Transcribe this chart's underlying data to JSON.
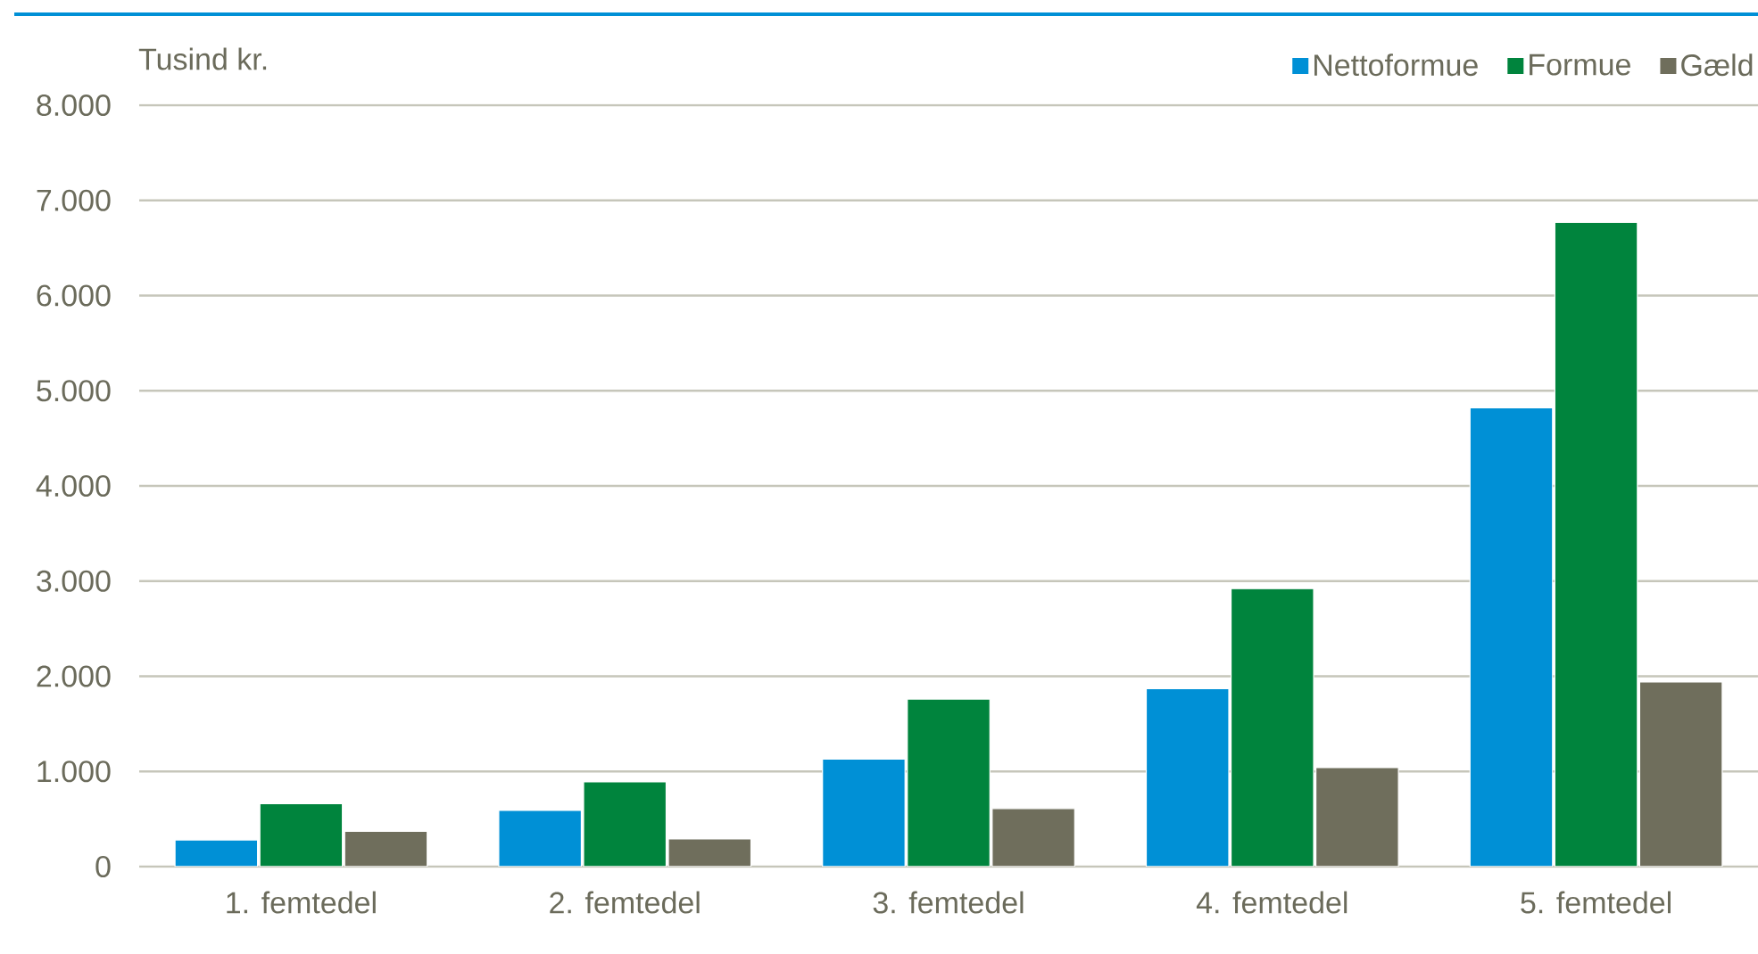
{
  "chart_data": {
    "type": "bar",
    "ylabel": "Tusind kr.",
    "categories": [
      "1. femtedel",
      "2. femtedel",
      "3. femtedel",
      "4. femtedel",
      "5. femtedel"
    ],
    "series": [
      {
        "name": "Nettoformue",
        "color": "#0090d6",
        "values": [
          280,
          590,
          1130,
          1870,
          4820
        ]
      },
      {
        "name": "Formue",
        "color": "#00843d",
        "values": [
          660,
          890,
          1760,
          2920,
          6770
        ]
      },
      {
        "name": "Gæld",
        "color": "#6f6e5c",
        "values": [
          370,
          290,
          610,
          1040,
          1940
        ]
      }
    ],
    "ylim": [
      0,
      8000
    ],
    "yticks": [
      0,
      {
        "value": 1000,
        "label": "1.000"
      },
      {
        "value": 2000,
        "label": "2.000"
      },
      {
        "value": 3000,
        "label": "3.000"
      },
      {
        "value": 4000,
        "label": "4.000"
      },
      {
        "value": 5000,
        "label": "5.000"
      },
      {
        "value": 6000,
        "label": "6.000"
      },
      {
        "value": 7000,
        "label": "7.000"
      },
      {
        "value": 8000,
        "label": "8.000"
      }
    ],
    "grid": "y",
    "legend": "top right"
  }
}
